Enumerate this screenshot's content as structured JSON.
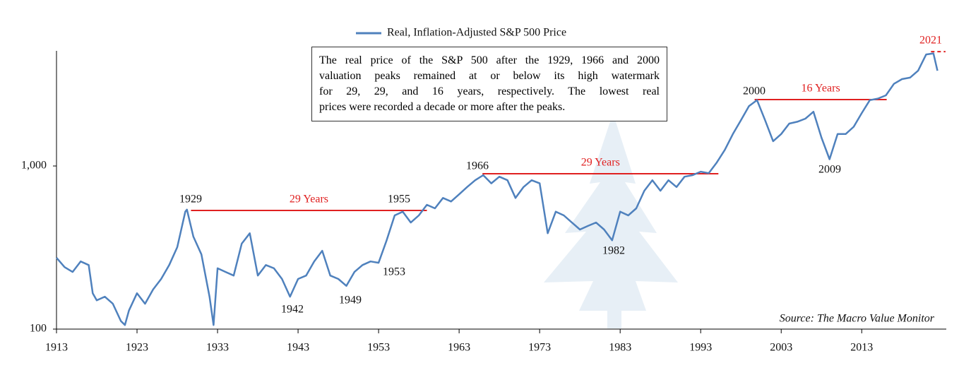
{
  "chart_data": {
    "type": "line",
    "log_scale_y": true,
    "source": "Source: The Macro Value Monitor",
    "text_box": [
      "The real price of the S&P 500 after the 1929, 1966 and 2000",
      "valuation peaks remained at or below its high watermark",
      "for 29, 29, and 16 years, respectively.  The lowest real",
      "prices were recorded a decade or more after the peaks."
    ],
    "year_labels": [
      "1929",
      "1955",
      "1953",
      "1942",
      "1949",
      "1966",
      "1982",
      "2000",
      "2009",
      "2021"
    ],
    "reference_lines": [
      {
        "label": "29 Years",
        "x": [
          1929.7,
          1959.0
        ],
        "y": 534,
        "color": "#e02020"
      },
      {
        "label": "29 Years",
        "x": [
          1965.9,
          1995.2
        ],
        "y": 896,
        "color": "#e02020"
      },
      {
        "label": "16 Years",
        "x": [
          1999.7,
          2016.1
        ],
        "y": 2553,
        "color": "#e02020"
      },
      {
        "x": [
          2021.6,
          2023.4
        ],
        "y": 5025,
        "color": "#e02020",
        "dashed": true
      }
    ],
    "xlim": [
      1913,
      2023.5
    ],
    "xticks": [
      1913,
      1923,
      1933,
      1943,
      1953,
      1963,
      1973,
      1983,
      1993,
      2003,
      2013
    ],
    "ylim": [
      100,
      5080
    ],
    "yticks": [
      100,
      {
        "value": 1000,
        "label": "1,000"
      }
    ],
    "series": [
      {
        "name": "Real, Inflation-Adjusted S&P 500 Price",
        "color": "#4f81bd",
        "x": [
          1913,
          1914,
          1915,
          1916,
          1917,
          1917.5,
          1918,
          1919,
          1920,
          1921,
          1921.5,
          1922,
          1923,
          1924,
          1925,
          1926,
          1927,
          1928,
          1929,
          1929.2,
          1930,
          1931,
          1932,
          1932.5,
          1933,
          1934,
          1935,
          1936,
          1937,
          1938,
          1939,
          1940,
          1941,
          1942,
          1943,
          1944,
          1945,
          1946,
          1947,
          1948,
          1949,
          1950,
          1951,
          1952,
          1953,
          1954,
          1955,
          1956,
          1957,
          1958,
          1959,
          1960,
          1961,
          1962,
          1963,
          1964,
          1965,
          1966,
          1967,
          1968,
          1969,
          1970,
          1971,
          1972,
          1973,
          1974,
          1975,
          1976,
          1977,
          1978,
          1979,
          1980,
          1981,
          1982,
          1983,
          1984,
          1985,
          1986,
          1987,
          1988,
          1989,
          1990,
          1991,
          1992,
          1993,
          1994,
          1995,
          1996,
          1997,
          1998,
          1999,
          2000,
          2001,
          2002,
          2003,
          2004,
          2005,
          2006,
          2007,
          2008,
          2009,
          2010,
          2011,
          2012,
          2013,
          2014,
          2015,
          2016,
          2017,
          2018,
          2019,
          2020,
          2021,
          2021.9,
          2022.4
        ],
        "values": [
          274,
          240,
          224,
          260,
          247,
          166,
          150,
          158,
          143,
          112,
          106,
          130,
          166,
          143,
          175,
          203,
          247,
          318,
          525,
          540,
          369,
          287,
          158,
          106,
          236,
          224,
          213,
          334,
          387,
          213,
          247,
          236,
          203,
          158,
          203,
          213,
          260,
          302,
          213,
          203,
          184,
          224,
          247,
          260,
          255,
          350,
          498,
          525,
          450,
          498,
          578,
          550,
          637,
          606,
          670,
          743,
          818,
          879,
          783,
          860,
          818,
          637,
          743,
          818,
          783,
          387,
          525,
          498,
          450,
          408,
          429,
          450,
          408,
          350,
          525,
          498,
          550,
          705,
          818,
          705,
          818,
          743,
          860,
          879,
          923,
          904,
          1050,
          1256,
          1570,
          1909,
          2330,
          2534,
          1909,
          1420,
          1570,
          1819,
          1868,
          1950,
          2150,
          1490,
          1100,
          1570,
          1570,
          1740,
          2110,
          2534,
          2590,
          2710,
          3190,
          3410,
          3480,
          3840,
          4830,
          4900,
          3840
        ]
      }
    ]
  }
}
